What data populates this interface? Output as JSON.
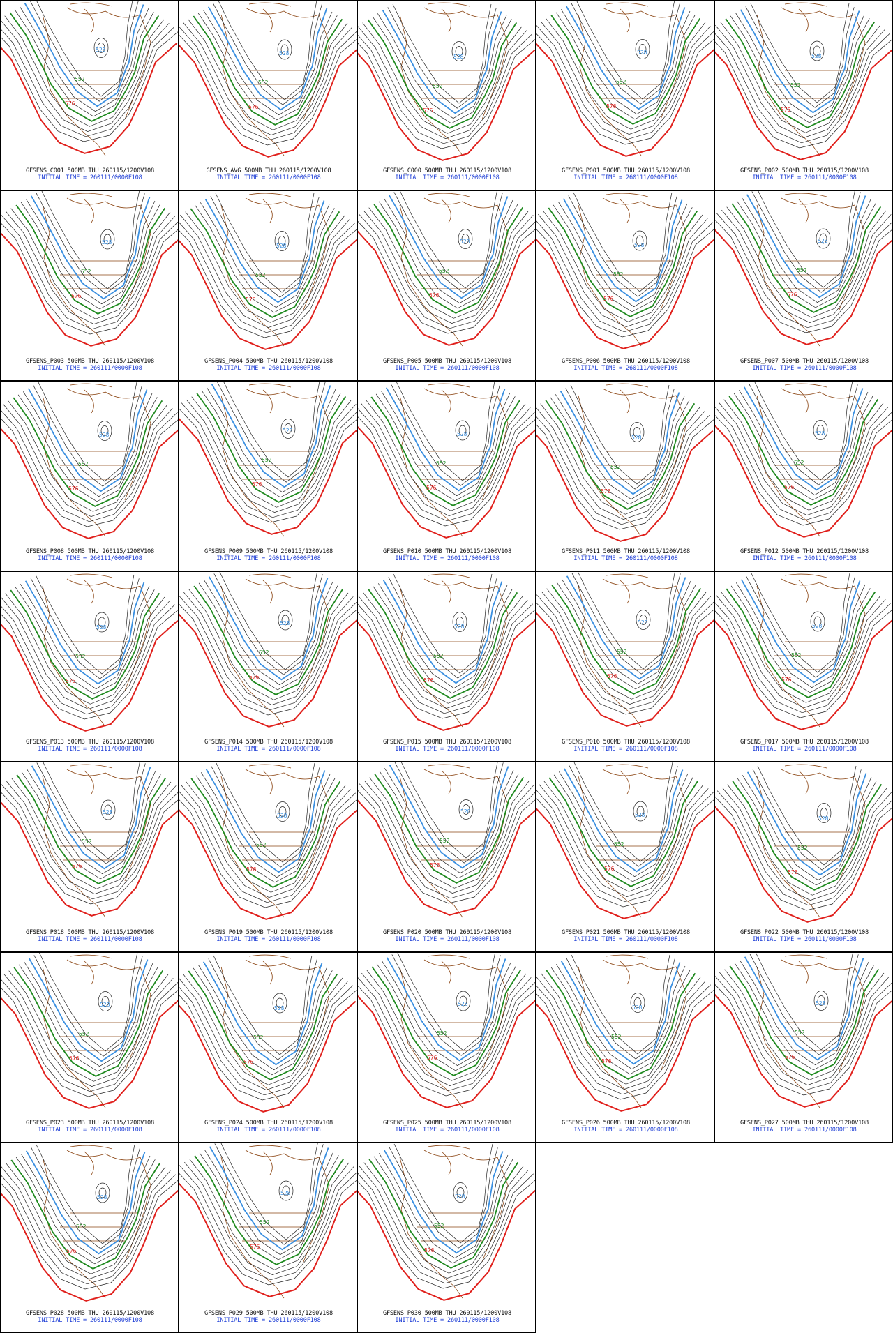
{
  "colors": {
    "height_contour": "#222222",
    "contour_576": "#e0201c",
    "contour_552": "#1f8a1f",
    "contour_528": "#3a8fe0",
    "coastline": "#8b4513",
    "caption_title": "#111111",
    "caption_time": "#1f3fd6"
  },
  "contour_labels": {
    "red": "576",
    "green": "552",
    "blue": "528"
  },
  "panels": [
    {
      "member": "C001",
      "title": "GFSENS_C001 500MB THU 260115/1200V108",
      "time": "INITIAL TIME = 260111/0000F108"
    },
    {
      "member": "AVG",
      "title": "GFSENS_AVG 500MB THU 260115/1200V108",
      "time": "INITIAL TIME = 260111/0000F108"
    },
    {
      "member": "C000",
      "title": "GFSENS_C000 500MB THU 260115/1200V108",
      "time": "INITIAL TIME = 260111/0000F108"
    },
    {
      "member": "P001",
      "title": "GFSENS_P001 500MB THU 260115/1200V108",
      "time": "INITIAL TIME = 260111/0000F108"
    },
    {
      "member": "P002",
      "title": "GFSENS_P002 500MB THU 260115/1200V108",
      "time": "INITIAL TIME = 260111/0000F108"
    },
    {
      "member": "P003",
      "title": "GFSENS_P003 500MB THU 260115/1200V108",
      "time": "INITIAL TIME = 260111/0000F108"
    },
    {
      "member": "P004",
      "title": "GFSENS_P004 500MB THU 260115/1200V108",
      "time": "INITIAL TIME = 260111/0000F108"
    },
    {
      "member": "P005",
      "title": "GFSENS_P005 500MB THU 260115/1200V108",
      "time": "INITIAL TIME = 260111/0000F108"
    },
    {
      "member": "P006",
      "title": "GFSENS_P006 500MB THU 260115/1200V108",
      "time": "INITIAL TIME = 260111/0000F108"
    },
    {
      "member": "P007",
      "title": "GFSENS_P007 500MB THU 260115/1200V108",
      "time": "INITIAL TIME = 260111/0000F108"
    },
    {
      "member": "P008",
      "title": "GFSENS_P008 500MB THU 260115/1200V108",
      "time": "INITIAL TIME = 260111/0000F108"
    },
    {
      "member": "P009",
      "title": "GFSENS_P009 500MB THU 260115/1200V108",
      "time": "INITIAL TIME = 260111/0000F108"
    },
    {
      "member": "P010",
      "title": "GFSENS_P010 500MB THU 260115/1200V108",
      "time": "INITIAL TIME = 260111/0000F108"
    },
    {
      "member": "P011",
      "title": "GFSENS_P011 500MB THU 260115/1200V108",
      "time": "INITIAL TIME = 260111/0000F108"
    },
    {
      "member": "P012",
      "title": "GFSENS_P012 500MB THU 260115/1200V108",
      "time": "INITIAL TIME = 260111/0000F108"
    },
    {
      "member": "P013",
      "title": "GFSENS_P013 500MB THU 260115/1200V108",
      "time": "INITIAL TIME = 260111/0000F108"
    },
    {
      "member": "P014",
      "title": "GFSENS_P014 500MB THU 260115/1200V108",
      "time": "INITIAL TIME = 260111/0000F108"
    },
    {
      "member": "P015",
      "title": "GFSENS_P015 500MB THU 260115/1200V108",
      "time": "INITIAL TIME = 260111/0000F108"
    },
    {
      "member": "P016",
      "title": "GFSENS_P016 500MB THU 260115/1200V108",
      "time": "INITIAL TIME = 260111/0000F108"
    },
    {
      "member": "P017",
      "title": "GFSENS_P017 500MB THU 260115/1200V108",
      "time": "INITIAL TIME = 260111/0000F108"
    },
    {
      "member": "P018",
      "title": "GFSENS_P018 500MB THU 260115/1200V108",
      "time": "INITIAL TIME = 260111/0000F108"
    },
    {
      "member": "P019",
      "title": "GFSENS_P019 500MB THU 260115/1200V108",
      "time": "INITIAL TIME = 260111/0000F108"
    },
    {
      "member": "P020",
      "title": "GFSENS_P020 500MB THU 260115/1200V108",
      "time": "INITIAL TIME = 260111/0000F108"
    },
    {
      "member": "P021",
      "title": "GFSENS_P021 500MB THU 260115/1200V108",
      "time": "INITIAL TIME = 260111/0000F108"
    },
    {
      "member": "P022",
      "title": "GFSENS_P022 500MB THU 260115/1200V108",
      "time": "INITIAL TIME = 260111/0000F108"
    },
    {
      "member": "P023",
      "title": "GFSENS_P023 500MB THU 260115/1200V108",
      "time": "INITIAL TIME = 260111/0000F108"
    },
    {
      "member": "P024",
      "title": "GFSENS_P024 500MB THU 260115/1200V108",
      "time": "INITIAL TIME = 260111/0000F108"
    },
    {
      "member": "P025",
      "title": "GFSENS_P025 500MB THU 260115/1200V108",
      "time": "INITIAL TIME = 260111/0000F108"
    },
    {
      "member": "P026",
      "title": "GFSENS_P026 500MB THU 260115/1200V108",
      "time": "INITIAL TIME = 260111/0000F108"
    },
    {
      "member": "P027",
      "title": "GFSENS_P027 500MB THU 260115/1200V108",
      "time": "INITIAL TIME = 260111/0000F108"
    },
    {
      "member": "P028",
      "title": "GFSENS_P028 500MB THU 260115/1200V108",
      "time": "INITIAL TIME = 260111/0000F108"
    },
    {
      "member": "P029",
      "title": "GFSENS_P029 500MB THU 260115/1200V108",
      "time": "INITIAL TIME = 260111/0000F108"
    },
    {
      "member": "P030",
      "title": "GFSENS_P030 500MB THU 260115/1200V108",
      "time": "INITIAL TIME = 260111/0000F108"
    }
  ]
}
